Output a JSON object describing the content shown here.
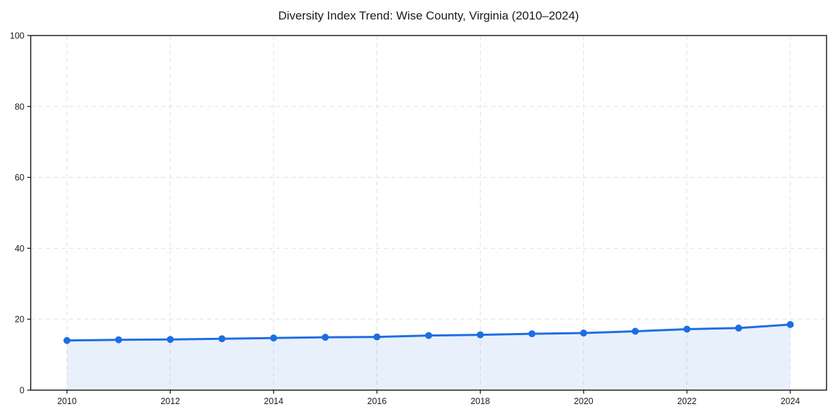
{
  "page": {
    "background": "#ffffff"
  },
  "chart_data": {
    "type": "area",
    "title": "Diversity Index Trend: Wise County, Virginia (2010–2024)",
    "x": [
      2010,
      2011,
      2012,
      2013,
      2014,
      2015,
      2016,
      2017,
      2018,
      2019,
      2020,
      2021,
      2022,
      2023,
      2024
    ],
    "series": [
      {
        "name": "Diversity Index",
        "values": [
          14.0,
          14.2,
          14.3,
          14.5,
          14.7,
          14.9,
          15.0,
          15.4,
          15.6,
          15.9,
          16.1,
          16.6,
          17.2,
          17.5,
          18.5
        ]
      }
    ],
    "xlabel": "",
    "ylabel": "",
    "ylim": [
      0,
      100
    ],
    "yticks": [
      0,
      20,
      40,
      60,
      80,
      100
    ],
    "xticks": [
      2010,
      2012,
      2014,
      2016,
      2018,
      2020,
      2022,
      2024
    ],
    "grid": true,
    "grid_style": "dashed",
    "legend_position": "none",
    "colors": {
      "line": "#1d6de2",
      "marker": "#1d6de2",
      "fill": "rgba(29, 109, 226, 0.10)",
      "grid": "#e4e4e4",
      "axis": "#1f1f1f",
      "tick_label": "#1a1a1a",
      "title": "#1a1a1a"
    }
  }
}
